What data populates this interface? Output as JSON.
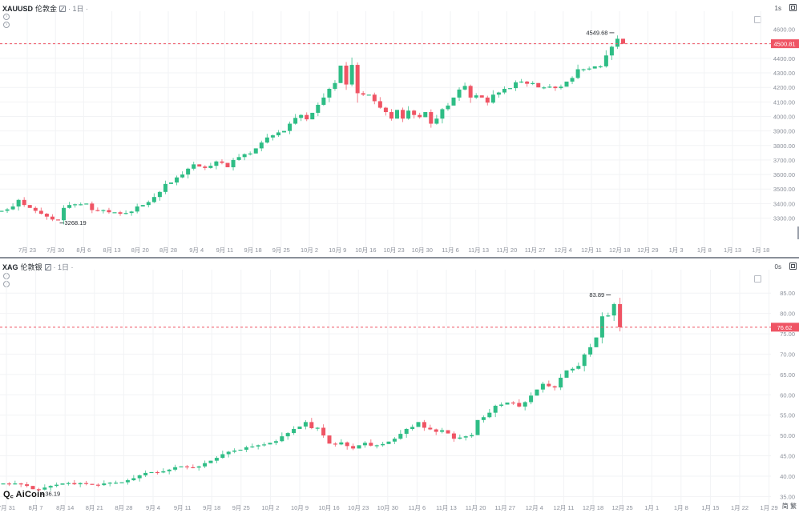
{
  "top": {
    "symbol": "XAUUSD",
    "name": "伦敦金",
    "interval": "· 1日 ·",
    "corner_label": "1s",
    "last_price": "4500.81",
    "high_label": "4549.68",
    "low_label": "3268.19",
    "y_axis": {
      "min": 3220,
      "max": 4620,
      "ticks": [
        "4500.00",
        "4400.00",
        "4300.00",
        "4200.00",
        "4100.00",
        "4000.00",
        "3900.00",
        "3800.00",
        "3700.00",
        "3600.00",
        "3500.00",
        "3400.00",
        "3300.00"
      ],
      "tick_values": [
        4500,
        4400,
        4300,
        4200,
        4100,
        4000,
        3900,
        3800,
        3700,
        3600,
        3500,
        3400,
        3300
      ],
      "tick_display_4600": "4600.00"
    },
    "x_labels": [
      "7月 23",
      "7月 30",
      "8月 6",
      "8月 13",
      "8月 20",
      "8月 28",
      "9月 4",
      "9月 11",
      "9月 18",
      "9月 25",
      "10月 2",
      "10月 9",
      "10月 16",
      "10月 23",
      "10月 30",
      "11月 6",
      "11月 13",
      "11月 20",
      "11月 27",
      "12月 4",
      "12月 11",
      "12月 18",
      "12月 29",
      "1月 3",
      "1月 8",
      "1月 13",
      "1月 18"
    ],
    "closes": [
      3350,
      3360,
      3380,
      3425,
      3390,
      3370,
      3350,
      3330,
      3310,
      3290,
      3285,
      3370,
      3390,
      3395,
      3395,
      3400,
      3355,
      3350,
      3355,
      3340,
      3340,
      3330,
      3335,
      3345,
      3380,
      3390,
      3410,
      3445,
      3480,
      3535,
      3545,
      3580,
      3600,
      3640,
      3670,
      3655,
      3645,
      3660,
      3690,
      3680,
      3650,
      3700,
      3720,
      3740,
      3745,
      3780,
      3820,
      3855,
      3870,
      3890,
      3900,
      3950,
      3990,
      4010,
      3980,
      4025,
      4080,
      4130,
      4190,
      4230,
      4350,
      4220,
      4355,
      4160,
      4150,
      4150,
      4105,
      4060,
      4030,
      3985,
      4045,
      3985,
      4040,
      4010,
      3995,
      4030,
      3950,
      3985,
      4050,
      4075,
      4130,
      4185,
      4210,
      4130,
      4145,
      4130,
      4095,
      4150,
      4165,
      4190,
      4195,
      4235,
      4240,
      4225,
      4230,
      4200,
      4200,
      4205,
      4195,
      4205,
      4240,
      4265,
      4325,
      4325,
      4330,
      4345,
      4345,
      4420,
      4480,
      4535,
      4500.81
    ]
  },
  "bottom": {
    "symbol": "XAG",
    "name": "伦敦银",
    "interval": "· 1日 ·",
    "corner_label": "0s",
    "last_price": "76.62",
    "high_label": "83.89",
    "low_label": "36.19",
    "y_axis": {
      "min": 33.5,
      "max": 88,
      "ticks": [
        "85.00",
        "80.00",
        "75.00",
        "70.00",
        "65.00",
        "60.00",
        "55.00",
        "50.00",
        "45.00",
        "40.00",
        "35.00"
      ],
      "tick_values": [
        85,
        80,
        75,
        70,
        65,
        60,
        55,
        50,
        45,
        40,
        35
      ]
    },
    "x_labels": [
      "7月 31",
      "8月 7",
      "8月 14",
      "8月 21",
      "8月 28",
      "9月 4",
      "9月 11",
      "9月 18",
      "9月 25",
      "10月 2",
      "10月 9",
      "10月 16",
      "10月 23",
      "10月 30",
      "11月 6",
      "11月 13",
      "11月 20",
      "11月 27",
      "12月 4",
      "12月 11",
      "12月 18",
      "12月 25",
      "1月 1",
      "1月 8",
      "1月 15",
      "1月 22",
      "1月 29"
    ],
    "closes": [
      38.2,
      38.1,
      38.2,
      38.0,
      37.6,
      36.8,
      36.7,
      37.2,
      37.6,
      37.9,
      38.2,
      38.3,
      38.0,
      38.3,
      38.1,
      37.9,
      37.8,
      38.2,
      38.4,
      38.4,
      38.5,
      39.0,
      39.5,
      40.2,
      40.8,
      41.0,
      40.9,
      41.2,
      41.6,
      42.2,
      42.4,
      42.2,
      42.1,
      42.4,
      43.2,
      43.8,
      44.5,
      45.4,
      46.0,
      46.3,
      46.5,
      47.1,
      47.3,
      47.6,
      47.8,
      48.2,
      48.6,
      49.8,
      50.6,
      51.6,
      52.2,
      53.3,
      51.8,
      51.9,
      50.0,
      48.0,
      47.8,
      48.3,
      47.4,
      46.8,
      47.6,
      48.2,
      47.5,
      47.6,
      47.9,
      48.5,
      49.2,
      50.4,
      51.6,
      52.1,
      53.3,
      51.9,
      51.5,
      50.9,
      51.3,
      50.5,
      49.2,
      49.5,
      49.8,
      50.1,
      53.8,
      54.5,
      55.6,
      57.3,
      57.6,
      58.1,
      58.0,
      57.1,
      58.2,
      59.8,
      61.3,
      62.7,
      62.1,
      61.8,
      64.2,
      66.0,
      66.4,
      67.1,
      69.9,
      71.7,
      74.1,
      79.3,
      79.5,
      82.3,
      76.62
    ]
  },
  "branding": {
    "logo": "AiCoin",
    "logo_icon": "aicoin-logo-icon"
  },
  "footer": {
    "lang_label": "简 繁"
  },
  "colors": {
    "up": "#2ebd85",
    "down": "#ef5464",
    "last_price_bg": "#ef5464",
    "grid": "#f2f3f5",
    "axis_text": "#8c919b"
  }
}
